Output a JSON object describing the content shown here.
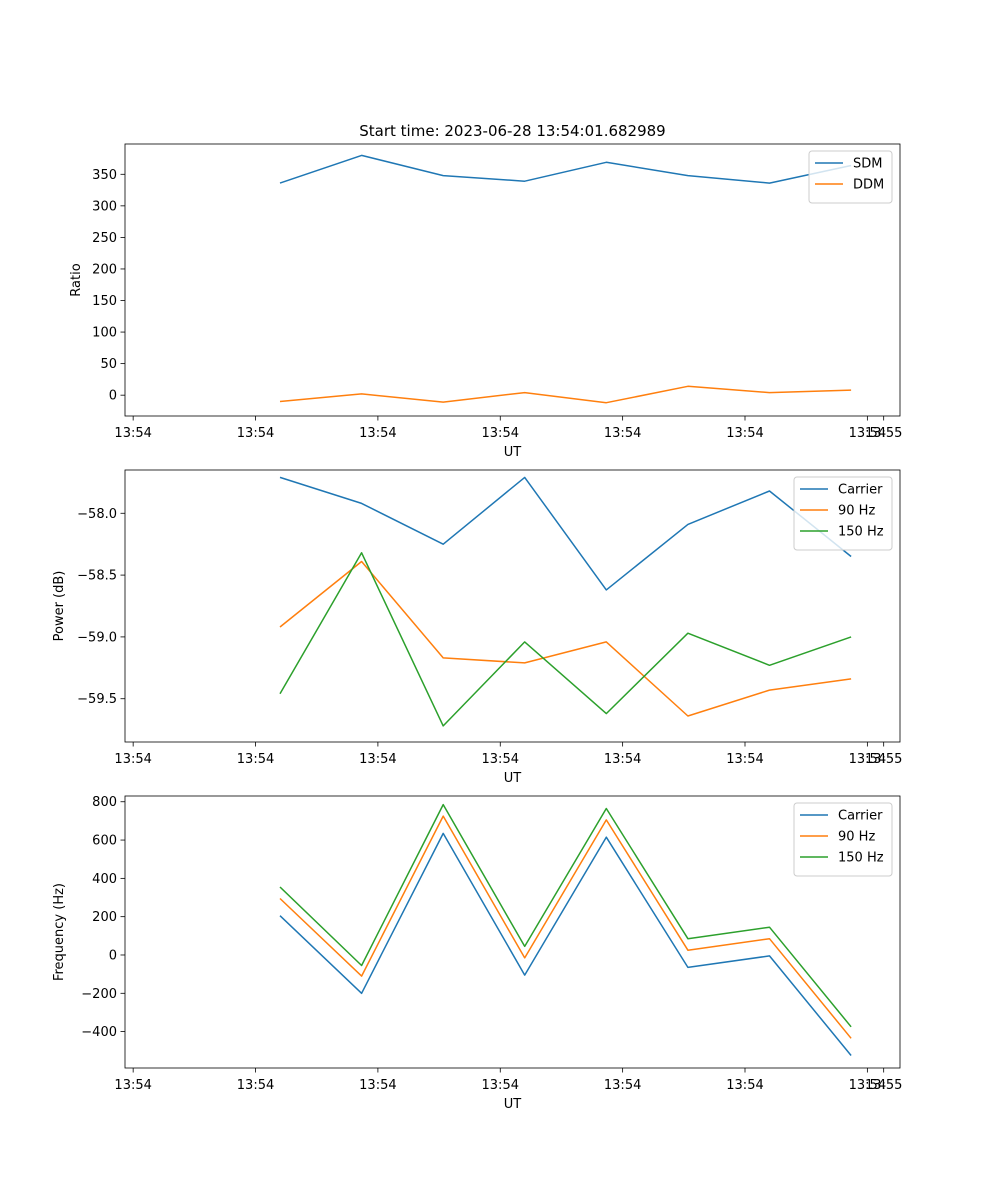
{
  "figure": {
    "suptitle": "Start time: 2023-06-28 13:54:01.682989"
  },
  "chart_data": [
    {
      "type": "line",
      "title": "Start time: 2023-06-28 13:54:01.682989",
      "xlabel": "UT",
      "ylabel": "Ratio",
      "x_unit": "seconds after 13:54:00 UT",
      "x": [
        3.3,
        4.3,
        5.3,
        6.3,
        7.3,
        8.3,
        9.3,
        10.3
      ],
      "xlim": [
        1.4,
        10.9
      ],
      "x_ticks": [
        1.5,
        3.0,
        4.5,
        6.0,
        7.5,
        9.0,
        10.5
      ],
      "x_tick_labels": [
        "13:54",
        "13:54",
        "13:54",
        "13:54",
        "13:54",
        "13:54",
        "13:54"
      ],
      "x_extra_tick": {
        "value": 10.7,
        "label": "13:55"
      },
      "ylim": [
        -33,
        398
      ],
      "y_ticks": [
        0,
        50,
        100,
        150,
        200,
        250,
        300,
        350
      ],
      "y_tick_labels": [
        "0",
        "50",
        "100",
        "150",
        "200",
        "250",
        "300",
        "350"
      ],
      "legend": "top-right",
      "grid": false,
      "series": [
        {
          "name": "SDM",
          "color": "#1f77b4",
          "values": [
            336,
            380,
            348,
            339,
            369,
            348,
            336,
            364
          ]
        },
        {
          "name": "DDM",
          "color": "#ff7f0e",
          "values": [
            -10,
            2,
            -11,
            4,
            -12,
            14,
            4,
            8
          ]
        }
      ]
    },
    {
      "type": "line",
      "title": "",
      "xlabel": "UT",
      "ylabel": "Power (dB)",
      "x_unit": "seconds after 13:54:00 UT",
      "x": [
        3.3,
        4.3,
        5.3,
        6.3,
        7.3,
        8.3,
        9.3,
        10.3
      ],
      "xlim": [
        1.4,
        10.9
      ],
      "x_ticks": [
        1.5,
        3.0,
        4.5,
        6.0,
        7.5,
        9.0,
        10.5
      ],
      "x_tick_labels": [
        "13:54",
        "13:54",
        "13:54",
        "13:54",
        "13:54",
        "13:54",
        "13:54"
      ],
      "x_extra_tick": {
        "value": 10.7,
        "label": "13:55"
      },
      "ylim": [
        -59.85,
        -57.65
      ],
      "y_ticks": [
        -58.0,
        -58.5,
        -59.0,
        -59.5
      ],
      "y_tick_labels": [
        "−58.0",
        "−58.5",
        "−59.0",
        "−59.5"
      ],
      "legend": "top-right",
      "grid": false,
      "series": [
        {
          "name": "Carrier",
          "color": "#1f77b4",
          "values": [
            -57.71,
            -57.92,
            -58.25,
            -57.71,
            -58.62,
            -58.09,
            -57.82,
            -58.35
          ]
        },
        {
          "name": "90 Hz",
          "color": "#ff7f0e",
          "values": [
            -58.92,
            -58.39,
            -59.17,
            -59.21,
            -59.04,
            -59.64,
            -59.43,
            -59.34
          ]
        },
        {
          "name": "150 Hz",
          "color": "#2ca02c",
          "values": [
            -59.46,
            -58.32,
            -59.72,
            -59.04,
            -59.62,
            -58.97,
            -59.23,
            -59.0
          ]
        }
      ]
    },
    {
      "type": "line",
      "title": "",
      "xlabel": "UT",
      "ylabel": "Frequency (Hz)",
      "x_unit": "seconds after 13:54:00 UT",
      "x": [
        3.3,
        4.3,
        5.3,
        6.3,
        7.3,
        8.3,
        9.3,
        10.3
      ],
      "xlim": [
        1.4,
        10.9
      ],
      "x_ticks": [
        1.5,
        3.0,
        4.5,
        6.0,
        7.5,
        9.0,
        10.5
      ],
      "x_tick_labels": [
        "13:54",
        "13:54",
        "13:54",
        "13:54",
        "13:54",
        "13:54",
        "13:54"
      ],
      "x_extra_tick": {
        "value": 10.7,
        "label": "13:55"
      },
      "ylim": [
        -590,
        830
      ],
      "y_ticks": [
        800,
        600,
        400,
        200,
        0,
        -200,
        -400
      ],
      "y_tick_labels": [
        "800",
        "600",
        "400",
        "200",
        "0",
        "−200",
        "−400"
      ],
      "legend": "top-right",
      "grid": false,
      "series": [
        {
          "name": "Carrier",
          "color": "#1f77b4",
          "values": [
            205,
            -200,
            635,
            -105,
            615,
            -65,
            -5,
            -525
          ]
        },
        {
          "name": "90 Hz",
          "color": "#ff7f0e",
          "values": [
            295,
            -110,
            725,
            -15,
            705,
            25,
            85,
            -435
          ]
        },
        {
          "name": "150 Hz",
          "color": "#2ca02c",
          "values": [
            355,
            -55,
            785,
            45,
            765,
            85,
            145,
            -375
          ]
        }
      ]
    }
  ]
}
